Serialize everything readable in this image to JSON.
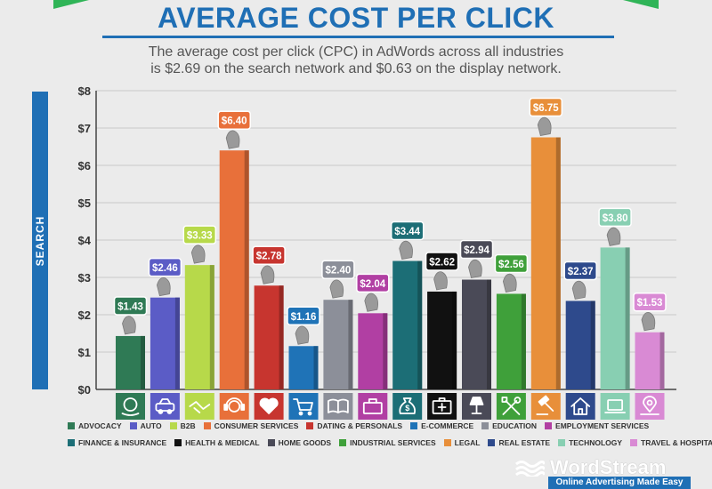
{
  "header": {
    "title": "AVERAGE COST PER CLICK",
    "subtitle_line1": "The average cost per click (CPC) in AdWords across all industries",
    "subtitle_line2": "is $2.69 on the search network and $0.63 on the display network."
  },
  "side_label": "SEARCH",
  "chart_data": {
    "type": "bar",
    "title": "AVERAGE COST PER CLICK",
    "ylabel": "SEARCH",
    "ylim": [
      0,
      8
    ],
    "yticks": [
      "$0",
      "$1",
      "$2",
      "$3",
      "$4",
      "$5",
      "$6",
      "$7",
      "$8"
    ],
    "grid": true,
    "categories": [
      "ADVOCACY",
      "AUTO",
      "B2B",
      "CONSUMER SERVICES",
      "DATING & PERSONALS",
      "E-COMMERCE",
      "EDUCATION",
      "EMPLOYMENT SERVICES",
      "FINANCE & INSURANCE",
      "HEALTH & MEDICAL",
      "HOME GOODS",
      "INDUSTRIAL SERVICES",
      "LEGAL",
      "REAL ESTATE",
      "TECHNOLOGY",
      "TRAVEL & HOSPITALITY"
    ],
    "values": [
      1.43,
      2.46,
      3.33,
      6.4,
      2.78,
      1.16,
      2.4,
      2.04,
      3.44,
      2.62,
      2.94,
      2.56,
      6.75,
      2.37,
      3.8,
      1.53
    ],
    "value_labels": [
      "$1.43",
      "$2.46",
      "$3.33",
      "$6.40",
      "$2.78",
      "$1.16",
      "$2.40",
      "$2.04",
      "$3.44",
      "$2.62",
      "$2.94",
      "$2.56",
      "$6.75",
      "$2.37",
      "$3.80",
      "$1.53"
    ],
    "colors": [
      "#2f7a55",
      "#5b5cc6",
      "#b7d94a",
      "#e8703a",
      "#c7352f",
      "#1f73b7",
      "#8c8f99",
      "#b13fa3",
      "#1c6e76",
      "#111111",
      "#4a4a57",
      "#3fa03a",
      "#e88f3a",
      "#2e4a8c",
      "#88cfb2",
      "#d98ad4"
    ],
    "icons": [
      "globe-hand-icon",
      "car-icon",
      "handshake-icon",
      "headset-icon",
      "heart-icon",
      "cart-icon",
      "book-icon",
      "briefcase-icon",
      "money-bag-icon",
      "medical-kit-icon",
      "lamp-icon",
      "tools-icon",
      "gavel-icon",
      "house-icon",
      "laptop-icon",
      "map-pin-icon"
    ]
  },
  "legend": {
    "row1": [
      "ADVOCACY",
      "AUTO",
      "B2B",
      "CONSUMER SERVICES",
      "DATING & PERSONALS",
      "E-COMMERCE",
      "EDUCATION",
      "EMPLOYMENT SERVICES"
    ],
    "row2": [
      "FINANCE & INSURANCE",
      "HEALTH & MEDICAL",
      "HOME GOODS",
      "INDUSTRIAL SERVICES",
      "LEGAL",
      "REAL ESTATE",
      "TECHNOLOGY",
      "TRAVEL & HOSPITALITY"
    ]
  },
  "brand": {
    "name": "WordStream",
    "tagline": "Online Advertising Made Easy"
  }
}
